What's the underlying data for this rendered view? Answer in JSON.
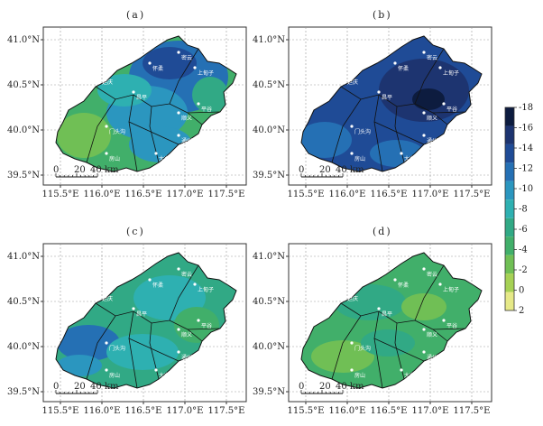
{
  "panels": [
    {
      "label": "(a)"
    },
    {
      "label": "(b)"
    },
    {
      "label": "(c)"
    },
    {
      "label": "(d)"
    }
  ],
  "lat_ticks": [
    "41.0°N",
    "40.5°N",
    "40.0°N",
    "39.5°N"
  ],
  "lon_ticks": [
    "115.5°E",
    "116.0°E",
    "116.5°E",
    "117.0°E",
    "117.5°E"
  ],
  "scalebar": {
    "zero": "0",
    "mid": "20",
    "end": "40 km"
  },
  "colorbar": {
    "ticks": [
      "-18",
      "-16",
      "-14",
      "-12",
      "-10",
      "-8",
      "-6",
      "-4",
      "-2",
      "0",
      "2"
    ],
    "colors": [
      "#0d1c3f",
      "#1d3470",
      "#1f4b96",
      "#2570b4",
      "#2b96bf",
      "#2eb0b1",
      "#31a985",
      "#41af6a",
      "#70bf55",
      "#a6d155",
      "#e6e988"
    ]
  },
  "city_labels": [
    "延庆",
    "怀柔",
    "密云",
    "平谷",
    "顺义",
    "昌平",
    "门头沟",
    "房山",
    "大兴",
    "通州",
    "上甸子"
  ]
}
